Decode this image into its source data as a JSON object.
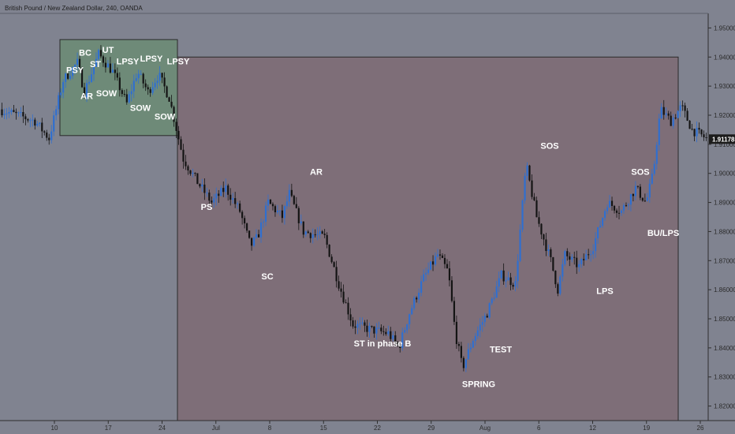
{
  "title": "British Pound / New Zealand Dollar, 240, OANDA",
  "current_price": "1.91178",
  "chart_data": {
    "type": "candlestick",
    "ylim": [
      1.815,
      1.955
    ],
    "y_ticks": [
      1.82,
      1.83,
      1.84,
      1.85,
      1.86,
      1.87,
      1.88,
      1.89,
      1.9,
      1.91,
      1.92,
      1.93,
      1.94,
      1.95
    ],
    "y_tick_labels": [
      "1.82000",
      "1.83000",
      "1.84000",
      "1.85000",
      "1.86000",
      "1.87000",
      "1.88000",
      "1.89000",
      "1.90000",
      "1.91000",
      "1.92000",
      "1.93000",
      "1.94000",
      "1.95000"
    ],
    "x_tick_labels": [
      "10",
      "17",
      "24",
      "Jul",
      "8",
      "15",
      "22",
      "29",
      "Aug",
      "6",
      "12",
      "19",
      "26"
    ],
    "price_path": [
      [
        0,
        1.922
      ],
      [
        0.05,
        1.918
      ],
      [
        0.07,
        1.912
      ],
      [
        0.09,
        1.932
      ],
      [
        0.11,
        1.938
      ],
      [
        0.12,
        1.928
      ],
      [
        0.14,
        1.941
      ],
      [
        0.16,
        1.935
      ],
      [
        0.18,
        1.924
      ],
      [
        0.195,
        1.935
      ],
      [
        0.21,
        1.928
      ],
      [
        0.225,
        1.934
      ],
      [
        0.24,
        1.926
      ],
      [
        0.26,
        1.905
      ],
      [
        0.28,
        1.897
      ],
      [
        0.3,
        1.89
      ],
      [
        0.32,
        1.895
      ],
      [
        0.34,
        1.887
      ],
      [
        0.355,
        1.875
      ],
      [
        0.365,
        1.878
      ],
      [
        0.38,
        1.89
      ],
      [
        0.4,
        1.885
      ],
      [
        0.41,
        1.893
      ],
      [
        0.43,
        1.88
      ],
      [
        0.46,
        1.878
      ],
      [
        0.48,
        1.862
      ],
      [
        0.5,
        1.848
      ],
      [
        0.53,
        1.846
      ],
      [
        0.55,
        1.845
      ],
      [
        0.565,
        1.84
      ],
      [
        0.58,
        1.852
      ],
      [
        0.6,
        1.864
      ],
      [
        0.62,
        1.872
      ],
      [
        0.635,
        1.866
      ],
      [
        0.645,
        1.845
      ],
      [
        0.655,
        1.833
      ],
      [
        0.67,
        1.843
      ],
      [
        0.69,
        1.852
      ],
      [
        0.71,
        1.865
      ],
      [
        0.73,
        1.862
      ],
      [
        0.745,
        1.903
      ],
      [
        0.76,
        1.885
      ],
      [
        0.78,
        1.87
      ],
      [
        0.79,
        1.86
      ],
      [
        0.8,
        1.872
      ],
      [
        0.82,
        1.868
      ],
      [
        0.84,
        1.875
      ],
      [
        0.86,
        1.89
      ],
      [
        0.88,
        1.887
      ],
      [
        0.9,
        1.895
      ],
      [
        0.915,
        1.89
      ],
      [
        0.925,
        1.9
      ],
      [
        0.935,
        1.922
      ],
      [
        0.95,
        1.918
      ],
      [
        0.965,
        1.923
      ],
      [
        0.98,
        1.915
      ],
      [
        1.0,
        1.912
      ]
    ],
    "boxes": [
      {
        "name": "distribution-range",
        "color": "#6e8a78",
        "y_top": 1.946,
        "y_bottom": 1.913
      },
      {
        "name": "accumulation-range",
        "color": "#7e6e78",
        "y_top": 1.94,
        "y_bottom": 1.815
      }
    ],
    "annotations": [
      {
        "text": "PSY",
        "y": 1.9345
      },
      {
        "text": "BC",
        "y": 1.9405
      },
      {
        "text": "ST",
        "y": 1.9365
      },
      {
        "text": "UT",
        "y": 1.9415
      },
      {
        "text": "LPSY",
        "y": 1.9375
      },
      {
        "text": "LPSY",
        "y": 1.9385
      },
      {
        "text": "LPSY",
        "y": 1.9375
      },
      {
        "text": "AR",
        "y": 1.9255
      },
      {
        "text": "SOW",
        "y": 1.9265
      },
      {
        "text": "SOW",
        "y": 1.9215
      },
      {
        "text": "SOW",
        "y": 1.9185
      },
      {
        "text": "PS",
        "y": 1.8875
      },
      {
        "text": "SC",
        "y": 1.8635
      },
      {
        "text": "AR",
        "y": 1.8995
      },
      {
        "text": "ST in phase B",
        "y": 1.8405
      },
      {
        "text": "SPRING",
        "y": 1.8265
      },
      {
        "text": "TEST",
        "y": 1.8385
      },
      {
        "text": "SOS",
        "y": 1.9085
      },
      {
        "text": "SOS",
        "y": 1.8995
      },
      {
        "text": "LPS",
        "y": 1.8585
      },
      {
        "text": "BU/LPS",
        "y": 1.8785
      }
    ]
  }
}
